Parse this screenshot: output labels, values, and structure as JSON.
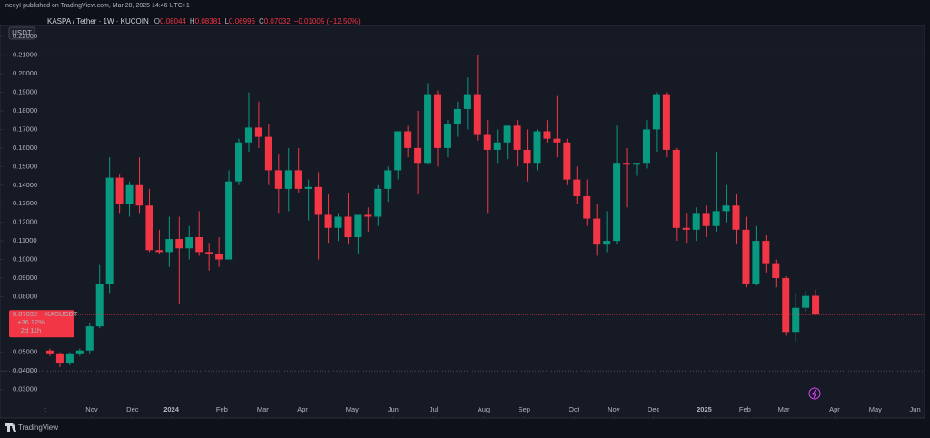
{
  "header": {
    "publisher": "neeyI published on TradingView.com, Mar 28, 2025 14:46 UTC+1",
    "symbol_button": "USDT"
  },
  "chart_data": {
    "type": "candlestick",
    "symbol": "KASPA / Tether · 1W · KUCOIN",
    "legend_labels": [
      "O",
      "H",
      "L",
      "C"
    ],
    "change": "−0.01005 (−12.50%)",
    "up_color": "#089981",
    "down_color": "#f23645",
    "open": [
      0.051,
      0.049,
      0.044,
      0.049,
      0.051,
      0.064,
      0.087,
      0.144,
      0.13,
      0.14,
      0.129,
      0.105,
      0.104,
      0.111,
      0.106,
      0.112,
      0.104,
      0.103,
      0.1,
      0.142,
      0.163,
      0.171,
      0.166,
      0.148,
      0.138,
      0.148,
      0.138,
      0.139,
      0.124,
      0.117,
      0.123,
      0.112,
      0.124,
      0.123,
      0.138,
      0.148,
      0.169,
      0.16,
      0.152,
      0.189,
      0.16,
      0.173,
      0.181,
      0.189,
      0.167,
      0.159,
      0.163,
      0.172,
      0.159,
      0.152,
      0.169,
      0.165,
      0.163,
      0.143,
      0.134,
      0.122,
      0.108,
      0.11,
      0.152,
      0.151,
      0.152,
      0.17,
      0.189,
      0.159,
      0.117,
      0.116,
      0.125,
      0.118,
      0.126,
      0.129,
      0.116,
      0.087,
      0.11,
      0.098,
      0.09,
      0.061,
      0.074,
      0.08044
    ],
    "high": [
      0.052,
      0.05,
      0.05,
      0.052,
      0.066,
      0.097,
      0.155,
      0.146,
      0.142,
      0.155,
      0.138,
      0.116,
      0.123,
      0.123,
      0.118,
      0.126,
      0.109,
      0.112,
      0.148,
      0.165,
      0.19,
      0.185,
      0.173,
      0.157,
      0.16,
      0.16,
      0.143,
      0.147,
      0.135,
      0.125,
      0.136,
      0.124,
      0.128,
      0.14,
      0.15,
      0.169,
      0.172,
      0.18,
      0.195,
      0.191,
      0.175,
      0.185,
      0.198,
      0.21,
      0.175,
      0.17,
      0.172,
      0.175,
      0.17,
      0.17,
      0.175,
      0.188,
      0.165,
      0.15,
      0.143,
      0.13,
      0.126,
      0.172,
      0.16,
      0.152,
      0.175,
      0.19,
      0.19,
      0.16,
      0.125,
      0.128,
      0.129,
      0.158,
      0.14,
      0.135,
      0.123,
      0.118,
      0.113,
      0.1,
      0.091,
      0.082,
      0.083,
      0.08381
    ],
    "low": [
      0.048,
      0.042,
      0.043,
      0.048,
      0.049,
      0.063,
      0.082,
      0.125,
      0.123,
      0.125,
      0.104,
      0.103,
      0.096,
      0.076,
      0.1,
      0.102,
      0.094,
      0.096,
      0.1,
      0.14,
      0.158,
      0.16,
      0.14,
      0.125,
      0.126,
      0.136,
      0.121,
      0.1,
      0.109,
      0.11,
      0.108,
      0.103,
      0.115,
      0.118,
      0.131,
      0.143,
      0.155,
      0.135,
      0.151,
      0.15,
      0.155,
      0.166,
      0.17,
      0.164,
      0.125,
      0.152,
      0.154,
      0.15,
      0.142,
      0.148,
      0.163,
      0.155,
      0.14,
      0.13,
      0.118,
      0.102,
      0.104,
      0.108,
      0.128,
      0.145,
      0.149,
      0.158,
      0.155,
      0.11,
      0.109,
      0.11,
      0.112,
      0.115,
      0.12,
      0.108,
      0.085,
      0.086,
      0.093,
      0.085,
      0.059,
      0.056,
      0.072,
      0.06996
    ],
    "close": [
      0.049,
      0.044,
      0.049,
      0.051,
      0.064,
      0.087,
      0.144,
      0.13,
      0.14,
      0.129,
      0.105,
      0.104,
      0.111,
      0.106,
      0.112,
      0.104,
      0.103,
      0.1,
      0.142,
      0.163,
      0.171,
      0.166,
      0.148,
      0.138,
      0.148,
      0.138,
      0.139,
      0.124,
      0.117,
      0.123,
      0.112,
      0.124,
      0.123,
      0.138,
      0.148,
      0.169,
      0.16,
      0.152,
      0.189,
      0.16,
      0.173,
      0.181,
      0.189,
      0.167,
      0.159,
      0.163,
      0.172,
      0.159,
      0.152,
      0.169,
      0.165,
      0.163,
      0.143,
      0.134,
      0.122,
      0.108,
      0.11,
      0.152,
      0.151,
      0.152,
      0.17,
      0.189,
      0.159,
      0.117,
      0.116,
      0.125,
      0.118,
      0.126,
      0.129,
      0.116,
      0.087,
      0.11,
      0.098,
      0.09,
      0.061,
      0.074,
      0.08037,
      0.07032
    ],
    "horizontal_lines": [
      0.21,
      0.04
    ],
    "ylim": [
      0.022,
      0.225
    ],
    "yticks": [
      {
        "value": 0.22,
        "label": "0.22000"
      },
      {
        "value": 0.21,
        "label": "0.21000"
      },
      {
        "value": 0.2,
        "label": "0.20000"
      },
      {
        "value": 0.19,
        "label": "0.19000"
      },
      {
        "value": 0.18,
        "label": "0.18000"
      },
      {
        "value": 0.17,
        "label": "0.17000"
      },
      {
        "value": 0.16,
        "label": "0.16000"
      },
      {
        "value": 0.15,
        "label": "0.15000"
      },
      {
        "value": 0.14,
        "label": "0.14000"
      },
      {
        "value": 0.13,
        "label": "0.13000"
      },
      {
        "value": 0.12,
        "label": "0.12000"
      },
      {
        "value": 0.11,
        "label": "0.11000"
      },
      {
        "value": 0.1,
        "label": "0.10000"
      },
      {
        "value": 0.09,
        "label": "0.09000"
      },
      {
        "value": 0.08,
        "label": "0.08000"
      },
      {
        "value": 0.05,
        "label": "0.05000"
      },
      {
        "value": 0.04,
        "label": "0.04000"
      },
      {
        "value": 0.03,
        "label": "0.03000"
      }
    ],
    "xlim": [
      -5.02,
      87.95
    ],
    "xticks": [
      {
        "value": -0.5,
        "label": "t"
      },
      {
        "value": 4.2,
        "label": "Nov"
      },
      {
        "value": 8.3,
        "label": "Dec"
      },
      {
        "value": 12.2,
        "label": "2024"
      },
      {
        "value": 17.3,
        "label": "Feb"
      },
      {
        "value": 21.4,
        "label": "Mar"
      },
      {
        "value": 25.4,
        "label": "Apr"
      },
      {
        "value": 30.4,
        "label": "May"
      },
      {
        "value": 34.5,
        "label": "Jun"
      },
      {
        "value": 38.6,
        "label": "Jul"
      },
      {
        "value": 43.6,
        "label": "Aug"
      },
      {
        "value": 47.7,
        "label": "Sep"
      },
      {
        "value": 52.7,
        "label": "Oct"
      },
      {
        "value": 56.7,
        "label": "Nov"
      },
      {
        "value": 60.7,
        "label": "Dec"
      },
      {
        "value": 65.8,
        "label": "2025"
      },
      {
        "value": 69.9,
        "label": "Feb"
      },
      {
        "value": 73.8,
        "label": "Mar"
      },
      {
        "value": 78.9,
        "label": "Apr"
      },
      {
        "value": 83.0,
        "label": "May"
      },
      {
        "value": 87.0,
        "label": "Jun"
      }
    ],
    "last_price_badge": {
      "symbol": "KASUSDT",
      "change": "+36.12%",
      "countdown": "2d 11h"
    }
  },
  "footer": {
    "brand": "TradingView"
  }
}
